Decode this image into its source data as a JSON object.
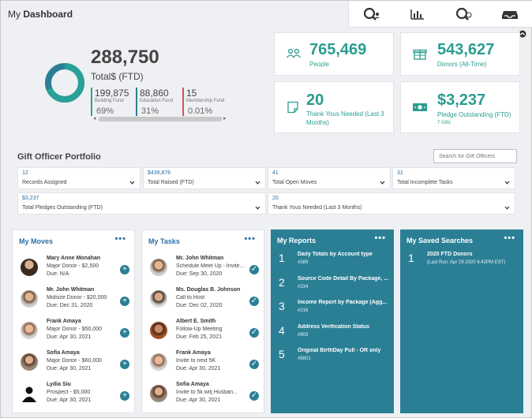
{
  "header": {
    "title_prefix": "My",
    "title_main": "Dashboard"
  },
  "toolbar": {
    "icons": [
      "search-people-icon",
      "bar-chart-icon",
      "search-filter-icon",
      "inbox-icon"
    ]
  },
  "summary": {
    "total": "288,750",
    "total_label": "Total$ (FTD)",
    "funds": [
      {
        "value": "199,875",
        "label": "Building Fund",
        "pct": "69%",
        "color": "#2aa198"
      },
      {
        "value": "88,860",
        "label": "Education Fund",
        "pct": "31%",
        "color": "#2a7f95"
      },
      {
        "value": "15",
        "label": "Membership Fund",
        "pct": "0.01%",
        "color": "#d9534f"
      }
    ]
  },
  "stats": [
    {
      "value": "765,469",
      "label": "People",
      "icon": "people-icon"
    },
    {
      "value": "543,627",
      "label": "Donors (All-Time)",
      "icon": "gift-icon"
    },
    {
      "value": "20",
      "label": "Thank Yous Needed (Last 3 Months)",
      "icon": "note-icon"
    },
    {
      "value": "$3,237",
      "label": "Pledge Outstanding (FTD)",
      "sub": "7 Gifts",
      "icon": "money-icon"
    }
  ],
  "portfolio": {
    "title": "Gift Officer Portfolio",
    "search_placeholder": "Search for Gift Officers",
    "metrics": [
      {
        "value": "12",
        "label": "Records Assigned"
      },
      {
        "value": "$439,876",
        "label": "Total Raised (FTD)"
      },
      {
        "value": "41",
        "label": "Total Open Moves"
      },
      {
        "value": "31",
        "label": "Total Incomplete Tasks"
      },
      {
        "value": "$3,237",
        "label": "Total Pledges Outstanding (FTD)"
      },
      {
        "value": "20",
        "label": "Thank Yous Needed (Last 3 Months)"
      }
    ]
  },
  "moves": {
    "title": "My Moves",
    "menu": "•••",
    "items": [
      {
        "name": "Mary Anne Monahan",
        "sub": "Major Donor - $2,500",
        "due": "Due: N/A"
      },
      {
        "name": "Mr. John Whitman",
        "sub": "Midsize Donor - $20,000",
        "due": "Due: Dec 31, 2020"
      },
      {
        "name": "Frank Amaya",
        "sub": "Major Donor - $50,000",
        "due": "Due: Apr 30, 2021"
      },
      {
        "name": "Sofia Amaya",
        "sub": "Major Donor - $60,000",
        "due": "Due: Apr 30, 2021"
      },
      {
        "name": "Lydia Siu",
        "sub": "Prospect - $5,000",
        "due": "Due: Apr 30, 2021"
      }
    ]
  },
  "tasks": {
    "title": "My Tasks",
    "menu": "•••",
    "items": [
      {
        "name": "Mr. John Whitman",
        "sub": "Schedule Meet Up - Invite...",
        "due": "Due: Sep 30, 2020"
      },
      {
        "name": "Ms. Douglas B. Johnson",
        "sub": "Call to Host",
        "due": "Due: Dec 02, 2020"
      },
      {
        "name": "Albert E. Smith",
        "sub": "Follow-Up Meeting",
        "due": "Due: Feb 25, 2021"
      },
      {
        "name": "Frank Amaya",
        "sub": "Invite to next 5K",
        "due": "Due: Apr 30, 2021"
      },
      {
        "name": "Sofia Amaya",
        "sub": "Invite to 5k witj Husban...",
        "due": "Due: Apr 30, 2021"
      }
    ]
  },
  "reports": {
    "title": "My Reports",
    "menu": "•••",
    "items": [
      {
        "no": "1",
        "title": "Daily Totals by Account type",
        "sub": "#389"
      },
      {
        "no": "2",
        "title": "Source Code Detail By Package, ...",
        "sub": "#234"
      },
      {
        "no": "3",
        "title": "Income Report by Package (Agg...",
        "sub": "#216"
      },
      {
        "no": "4",
        "title": "Address Verification Status",
        "sub": "#903"
      },
      {
        "no": "5",
        "title": "Original BirthDay Pull - OR only",
        "sub": "#8801"
      }
    ]
  },
  "searches": {
    "title": "My Saved Searches",
    "menu": "•••",
    "items": [
      {
        "no": "1",
        "title": "2020 FTD Donors",
        "sub": "(Last Run: Apr 29 2020 6:42PM EST)"
      }
    ]
  },
  "colors": {
    "accent": "#2a9d8f",
    "panel_dark": "#2b7f95",
    "link": "#2a6fa8"
  }
}
